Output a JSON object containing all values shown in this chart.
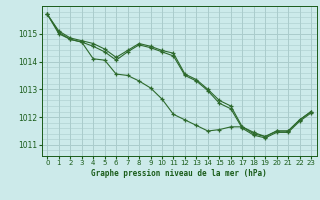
{
  "background_color": "#cceaea",
  "grid_color": "#aacccc",
  "line_color": "#2d6a2d",
  "marker_color": "#2d6a2d",
  "xlabel": "Graphe pression niveau de la mer (hPa)",
  "xlabel_color": "#1a5c1a",
  "tick_color": "#1a5c1a",
  "xlim": [
    -0.5,
    23.5
  ],
  "ylim": [
    1010.6,
    1016.0
  ],
  "yticks": [
    1011,
    1012,
    1013,
    1014,
    1015
  ],
  "xticks": [
    0,
    1,
    2,
    3,
    4,
    5,
    6,
    7,
    8,
    9,
    10,
    11,
    12,
    13,
    14,
    15,
    16,
    17,
    18,
    19,
    20,
    21,
    22,
    23
  ],
  "series": [
    [
      1015.7,
      1015.1,
      1014.85,
      1014.75,
      1014.65,
      1014.45,
      1014.15,
      1014.4,
      1014.65,
      1014.55,
      1014.4,
      1014.3,
      1013.55,
      1013.35,
      1013.0,
      1012.6,
      1012.4,
      1011.65,
      1011.4,
      1011.3,
      1011.5,
      1011.5,
      1011.9,
      1012.2
    ],
    [
      1015.7,
      1015.05,
      1014.8,
      1014.7,
      1014.55,
      1014.35,
      1014.05,
      1014.35,
      1014.6,
      1014.5,
      1014.35,
      1014.2,
      1013.5,
      1013.3,
      1012.95,
      1012.5,
      1012.3,
      1011.6,
      1011.35,
      1011.25,
      1011.45,
      1011.45,
      1011.85,
      1012.15
    ],
    [
      1015.7,
      1015.0,
      1014.8,
      1014.7,
      1014.1,
      1014.05,
      1013.55,
      1013.5,
      1013.3,
      1013.05,
      1012.65,
      1012.1,
      1011.9,
      1011.7,
      1011.5,
      1011.55,
      1011.65,
      1011.65,
      1011.45,
      1011.3,
      1011.5,
      1011.5,
      1011.9,
      1012.2
    ]
  ]
}
